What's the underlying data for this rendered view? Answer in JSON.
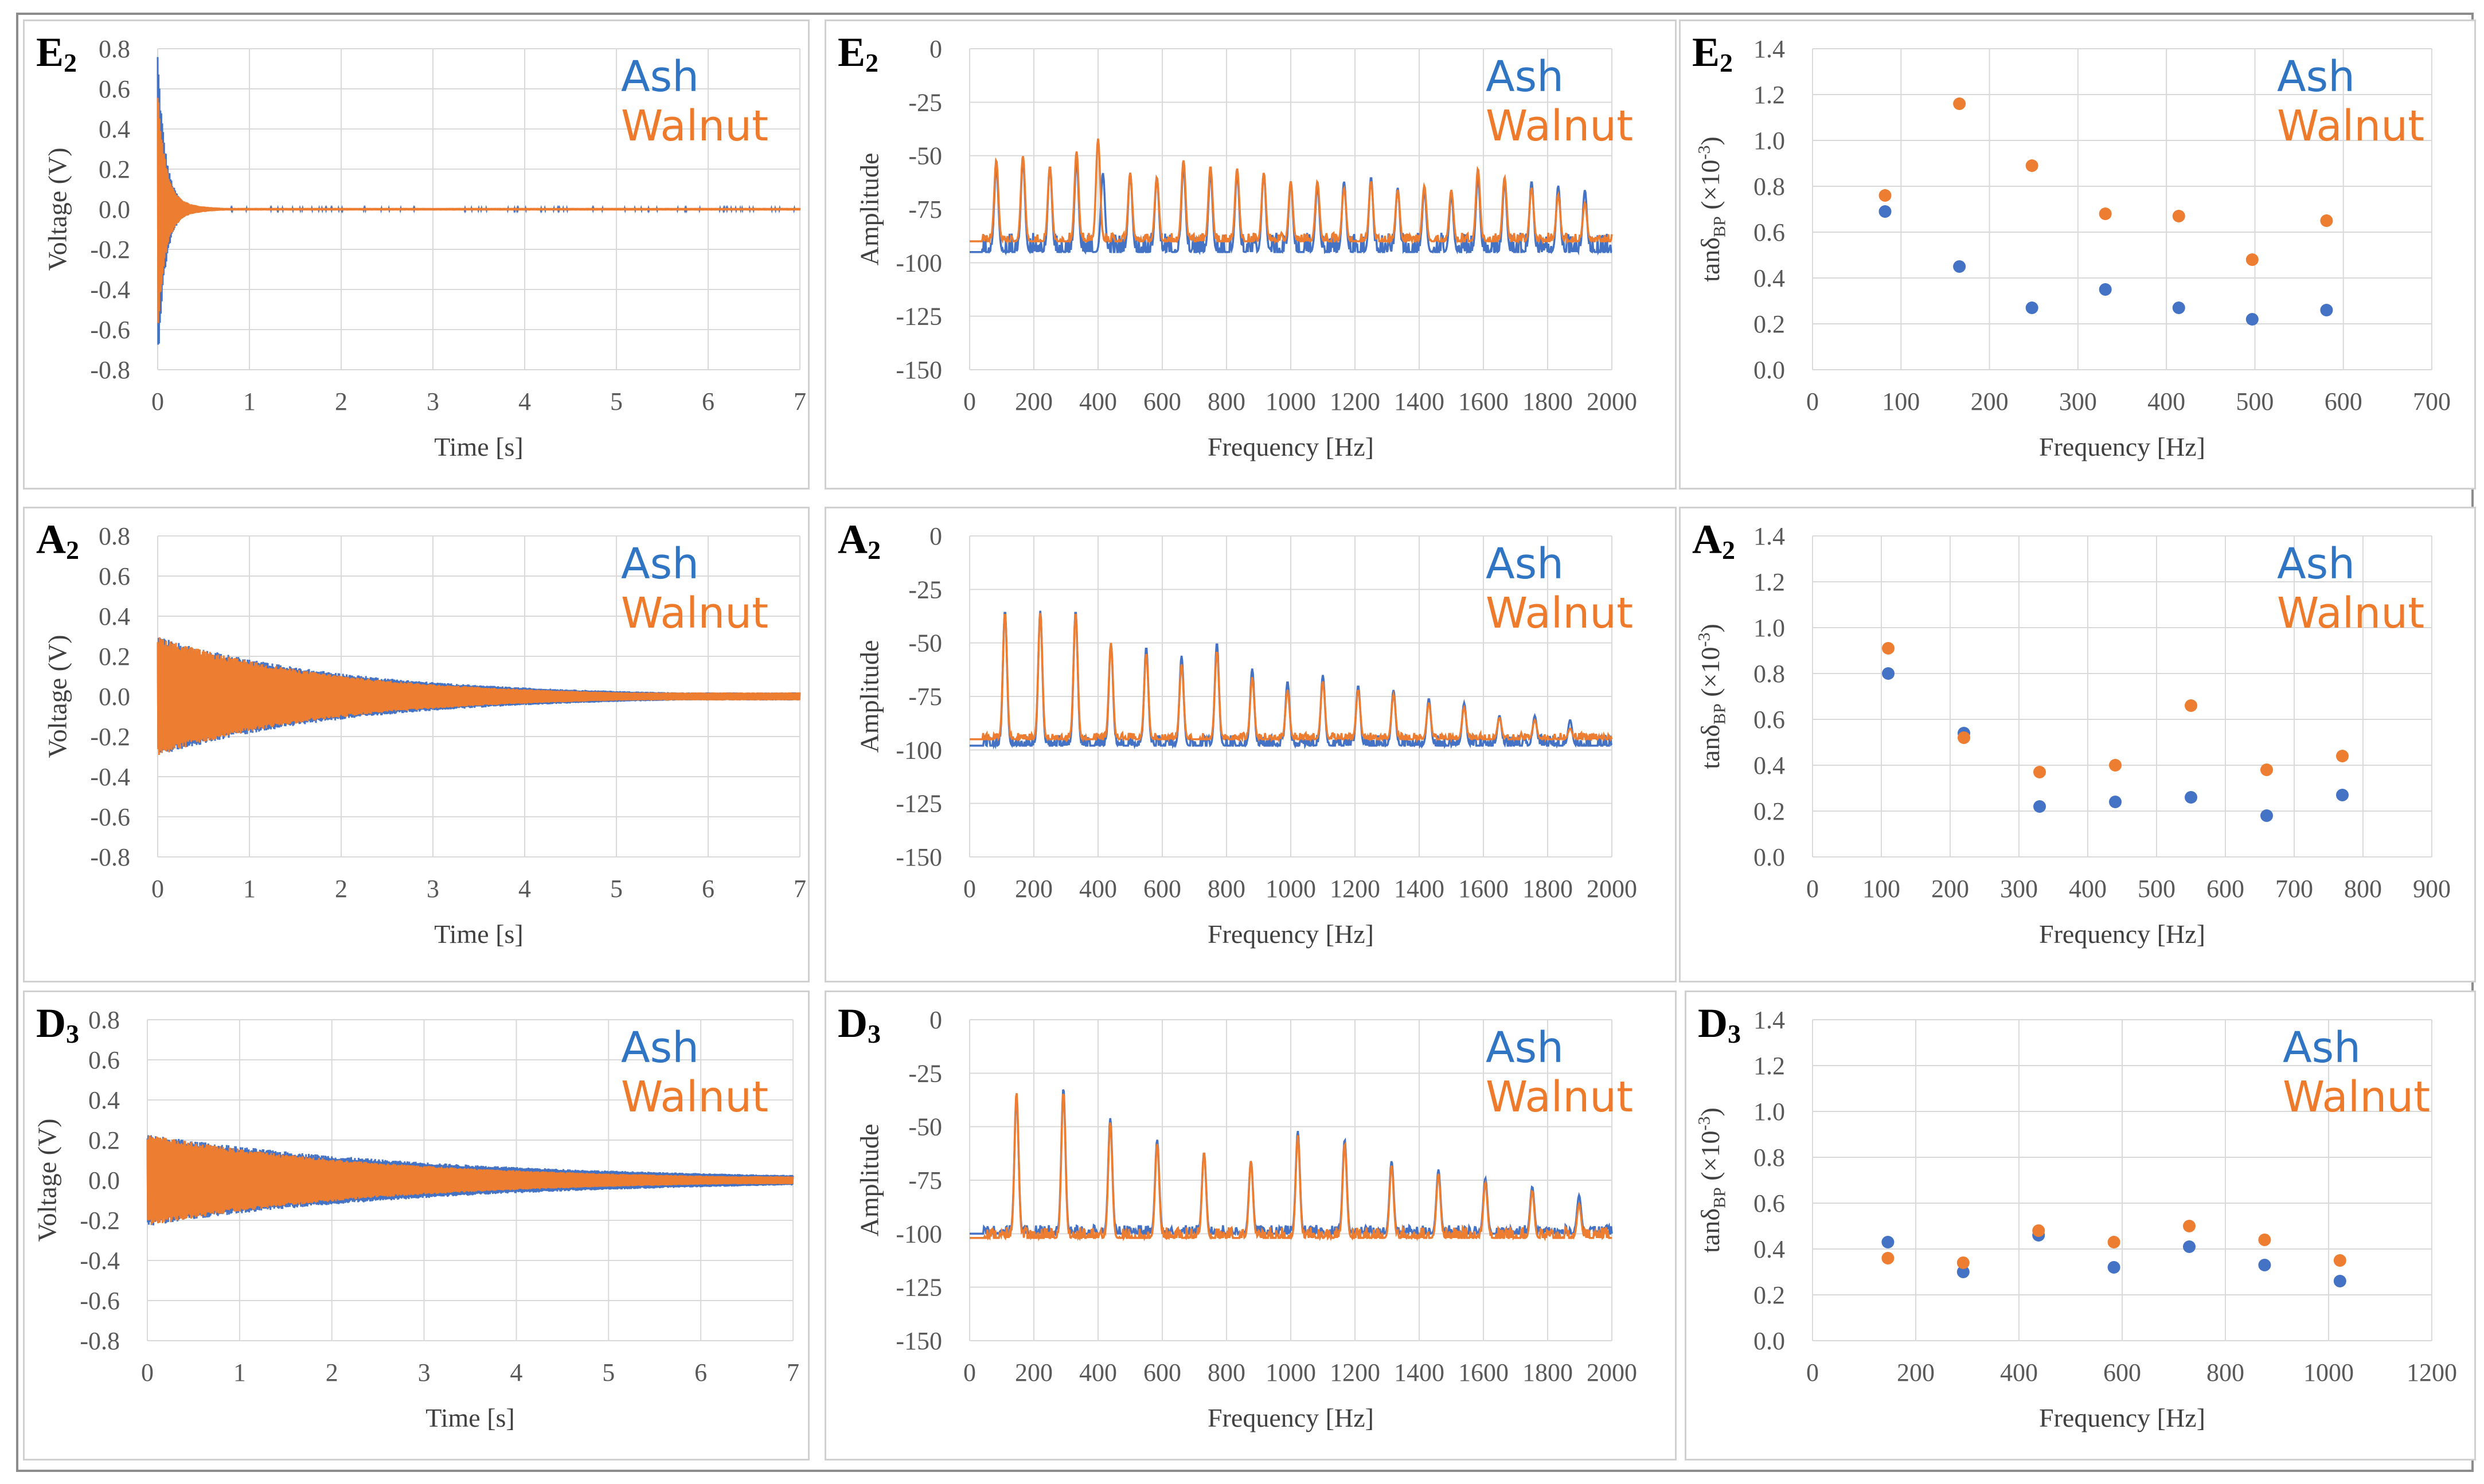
{
  "figure": {
    "legend": {
      "ash": "Ash",
      "walnut": "Walnut"
    },
    "colors": {
      "ash": "#4472c4",
      "walnut": "#ed7d31",
      "grid": "#d9d9d9",
      "axis_text": "#595959"
    }
  },
  "chart_data": [
    {
      "id": "E2-time",
      "type": "line",
      "panel_label": "E",
      "panel_sub": "2",
      "xlabel": "Time [s]",
      "ylabel": "Voltage (V)",
      "xlim": [
        0,
        7
      ],
      "ylim": [
        -0.8,
        0.8
      ],
      "xticks": [
        "0",
        "1",
        "2",
        "3",
        "4",
        "5",
        "6",
        "7"
      ],
      "yticks": [
        "0.8",
        "0.6",
        "0.4",
        "0.2",
        "0.0",
        "-0.2",
        "-0.4",
        "-0.6",
        "-0.8"
      ],
      "series": [
        {
          "name": "Ash",
          "envelope": {
            "peak": 0.8,
            "base": 0.06,
            "decay_s": 0.25,
            "floor": 0.005,
            "t_end": 7
          }
        },
        {
          "name": "Walnut",
          "envelope": {
            "peak": 0.62,
            "base": 0.07,
            "decay_s": 0.3,
            "floor": 0.006,
            "t_end": 7
          }
        }
      ]
    },
    {
      "id": "E2-spectrum",
      "type": "line",
      "panel_label": "E",
      "panel_sub": "2",
      "xlabel": "Frequency [Hz]",
      "ylabel": "Amplitude",
      "xlim": [
        0,
        2000
      ],
      "ylim": [
        -150,
        0
      ],
      "xticks": [
        "0",
        "200",
        "400",
        "600",
        "800",
        "1000",
        "1200",
        "1400",
        "1600",
        "1800",
        "2000"
      ],
      "yticks": [
        "0",
        "-25",
        "-50",
        "-75",
        "-100",
        "-125",
        "-150"
      ],
      "series": [
        {
          "name": "Ash",
          "baseline": -95,
          "noise": 9,
          "peaks": [
            [
              83,
              -55
            ],
            [
              166,
              -52
            ],
            [
              250,
              -55
            ],
            [
              333,
              -52
            ],
            [
              415,
              -58
            ],
            [
              500,
              -58
            ],
            [
              583,
              -60
            ],
            [
              666,
              -55
            ],
            [
              750,
              -58
            ],
            [
              833,
              -58
            ],
            [
              916,
              -58
            ],
            [
              1000,
              -62
            ],
            [
              1083,
              -64
            ],
            [
              1166,
              -62
            ],
            [
              1250,
              -60
            ],
            [
              1333,
              -65
            ],
            [
              1416,
              -66
            ],
            [
              1500,
              -68
            ],
            [
              1583,
              -60
            ],
            [
              1666,
              -62
            ],
            [
              1750,
              -62
            ],
            [
              1833,
              -64
            ],
            [
              1916,
              -66
            ]
          ]
        },
        {
          "name": "Walnut",
          "baseline": -90,
          "noise": 4,
          "peaks": [
            [
              83,
              -52
            ],
            [
              166,
              -50
            ],
            [
              250,
              -55
            ],
            [
              333,
              -48
            ],
            [
              400,
              -42
            ],
            [
              500,
              -58
            ],
            [
              583,
              -60
            ],
            [
              666,
              -52
            ],
            [
              750,
              -55
            ],
            [
              833,
              -56
            ],
            [
              916,
              -58
            ],
            [
              1000,
              -62
            ],
            [
              1083,
              -62
            ],
            [
              1166,
              -65
            ],
            [
              1250,
              -62
            ],
            [
              1333,
              -66
            ],
            [
              1416,
              -64
            ],
            [
              1500,
              -66
            ],
            [
              1583,
              -56
            ],
            [
              1666,
              -60
            ],
            [
              1750,
              -65
            ],
            [
              1833,
              -68
            ],
            [
              1916,
              -72
            ]
          ]
        }
      ]
    },
    {
      "id": "E2-loss",
      "type": "scatter",
      "panel_label": "E",
      "panel_sub": "2",
      "xlabel": "Frequency [Hz]",
      "ylabel_main": "tanδ",
      "ylabel_sub": "BP",
      "ylabel_unit_pre": " (×10",
      "ylabel_sup": "-3",
      "ylabel_unit_post": ")",
      "xlim": [
        0,
        700
      ],
      "ylim": [
        0,
        1.4
      ],
      "xticks": [
        "0",
        "100",
        "200",
        "300",
        "400",
        "500",
        "600",
        "700"
      ],
      "yticks": [
        "1.4",
        "1.2",
        "1.0",
        "0.8",
        "0.6",
        "0.4",
        "0.2",
        "0.0"
      ],
      "series": [
        {
          "name": "Ash",
          "x": [
            82,
            166,
            248,
            331,
            414,
            497,
            581
          ],
          "y": [
            0.69,
            0.45,
            0.27,
            0.35,
            0.27,
            0.22,
            0.26
          ]
        },
        {
          "name": "Walnut",
          "x": [
            82,
            166,
            248,
            331,
            414,
            497,
            581
          ],
          "y": [
            0.76,
            1.16,
            0.89,
            0.68,
            0.67,
            0.48,
            0.65
          ]
        }
      ]
    },
    {
      "id": "A2-time",
      "type": "line",
      "panel_label": "A",
      "panel_sub": "2",
      "xlabel": "Time [s]",
      "ylabel": "Voltage (V)",
      "xlim": [
        0,
        7
      ],
      "ylim": [
        -0.8,
        0.8
      ],
      "xticks": [
        "0",
        "1",
        "2",
        "3",
        "4",
        "5",
        "6",
        "7"
      ],
      "yticks": [
        "0.8",
        "0.6",
        "0.4",
        "0.2",
        "0.0",
        "-0.2",
        "-0.4",
        "-0.6",
        "-0.8"
      ],
      "series": [
        {
          "name": "Ash",
          "envelope": {
            "peak": 0.3,
            "base": 0.3,
            "decay_s": 2.1,
            "floor": 0.02,
            "t_end": 7
          }
        },
        {
          "name": "Walnut",
          "envelope": {
            "peak": 0.3,
            "base": 0.3,
            "decay_s": 1.9,
            "floor": 0.02,
            "t_end": 7
          }
        }
      ]
    },
    {
      "id": "A2-spectrum",
      "type": "line",
      "panel_label": "A",
      "panel_sub": "2",
      "xlabel": "Frequency [Hz]",
      "ylabel": "Amplitude",
      "xlim": [
        0,
        2000
      ],
      "ylim": [
        -150,
        0
      ],
      "xticks": [
        "0",
        "200",
        "400",
        "600",
        "800",
        "1000",
        "1200",
        "1400",
        "1600",
        "1800",
        "2000"
      ],
      "yticks": [
        "0",
        "-25",
        "-50",
        "-75",
        "-100",
        "-125",
        "-150"
      ],
      "series": [
        {
          "name": "Ash",
          "baseline": -98,
          "noise": 5,
          "peaks": [
            [
              110,
              -35
            ],
            [
              220,
              -35
            ],
            [
              330,
              -35
            ],
            [
              440,
              -50
            ],
            [
              550,
              -52
            ],
            [
              660,
              -56
            ],
            [
              770,
              -50
            ],
            [
              880,
              -62
            ],
            [
              990,
              -68
            ],
            [
              1100,
              -65
            ],
            [
              1210,
              -70
            ],
            [
              1320,
              -72
            ],
            [
              1430,
              -76
            ],
            [
              1540,
              -78
            ],
            [
              1650,
              -84
            ],
            [
              1760,
              -84
            ],
            [
              1870,
              -86
            ],
            [
              1980,
              -100
            ]
          ]
        },
        {
          "name": "Walnut",
          "baseline": -95,
          "noise": 3,
          "peaks": [
            [
              110,
              -36
            ],
            [
              220,
              -36
            ],
            [
              330,
              -36
            ],
            [
              440,
              -50
            ],
            [
              550,
              -55
            ],
            [
              660,
              -60
            ],
            [
              770,
              -54
            ],
            [
              880,
              -66
            ],
            [
              990,
              -72
            ],
            [
              1100,
              -68
            ],
            [
              1210,
              -72
            ],
            [
              1320,
              -74
            ],
            [
              1430,
              -78
            ],
            [
              1540,
              -80
            ],
            [
              1650,
              -85
            ],
            [
              1760,
              -86
            ],
            [
              1870,
              -90
            ],
            [
              1980,
              -98
            ]
          ]
        }
      ]
    },
    {
      "id": "A2-loss",
      "type": "scatter",
      "panel_label": "A",
      "panel_sub": "2",
      "xlabel": "Frequency [Hz]",
      "ylabel_main": "tanδ",
      "ylabel_sub": "BP",
      "ylabel_unit_pre": " (×10",
      "ylabel_sup": "-3",
      "ylabel_unit_post": ")",
      "xlim": [
        0,
        900
      ],
      "ylim": [
        0,
        1.4
      ],
      "xticks": [
        "0",
        "100",
        "200",
        "300",
        "400",
        "500",
        "600",
        "700",
        "800",
        "900"
      ],
      "yticks": [
        "1.4",
        "1.2",
        "1.0",
        "0.8",
        "0.6",
        "0.4",
        "0.2",
        "0.0"
      ],
      "series": [
        {
          "name": "Ash",
          "x": [
            110,
            220,
            330,
            440,
            550,
            660,
            770
          ],
          "y": [
            0.8,
            0.54,
            0.22,
            0.24,
            0.26,
            0.18,
            0.27
          ]
        },
        {
          "name": "Walnut",
          "x": [
            110,
            220,
            330,
            440,
            550,
            660,
            770
          ],
          "y": [
            0.91,
            0.52,
            0.37,
            0.4,
            0.66,
            0.38,
            0.44
          ]
        }
      ]
    },
    {
      "id": "D3-time",
      "type": "line",
      "panel_label": "D",
      "panel_sub": "3",
      "xlabel": "Time [s]",
      "ylabel": "Voltage (V)",
      "xlim": [
        0,
        7
      ],
      "ylim": [
        -0.8,
        0.8
      ],
      "xticks": [
        "0",
        "1",
        "2",
        "3",
        "4",
        "5",
        "6",
        "7"
      ],
      "yticks": [
        "0.8",
        "0.6",
        "0.4",
        "0.2",
        "0.0",
        "-0.2",
        "-0.4",
        "-0.6",
        "-0.8"
      ],
      "series": [
        {
          "name": "Ash",
          "envelope": {
            "peak": 0.23,
            "base": 0.23,
            "decay_s": 3.2,
            "floor": 0.02,
            "t_end": 7
          }
        },
        {
          "name": "Walnut",
          "envelope": {
            "peak": 0.23,
            "base": 0.23,
            "decay_s": 2.6,
            "floor": 0.02,
            "t_end": 7
          }
        }
      ]
    },
    {
      "id": "D3-spectrum",
      "type": "line",
      "panel_label": "D",
      "panel_sub": "3",
      "xlabel": "Frequency [Hz]",
      "ylabel": "Amplitude",
      "xlim": [
        0,
        2000
      ],
      "ylim": [
        -150,
        0
      ],
      "xticks": [
        "0",
        "200",
        "400",
        "600",
        "800",
        "1000",
        "1200",
        "1400",
        "1600",
        "1800",
        "2000"
      ],
      "yticks": [
        "0",
        "-25",
        "-50",
        "-75",
        "-100",
        "-125",
        "-150"
      ],
      "series": [
        {
          "name": "Ash",
          "baseline": -100,
          "noise": 4,
          "peaks": [
            [
              146,
              -36
            ],
            [
              292,
              -32
            ],
            [
              438,
              -46
            ],
            [
              584,
              -56
            ],
            [
              730,
              -62
            ],
            [
              876,
              -66
            ],
            [
              1022,
              -52
            ],
            [
              1168,
              -56
            ],
            [
              1314,
              -66
            ],
            [
              1460,
              -70
            ],
            [
              1606,
              -74
            ],
            [
              1752,
              -78
            ],
            [
              1898,
              -82
            ]
          ]
        },
        {
          "name": "Walnut",
          "baseline": -102,
          "noise": 5,
          "peaks": [
            [
              146,
              -34
            ],
            [
              292,
              -34
            ],
            [
              438,
              -48
            ],
            [
              584,
              -58
            ],
            [
              730,
              -62
            ],
            [
              876,
              -66
            ],
            [
              1022,
              -54
            ],
            [
              1168,
              -58
            ],
            [
              1314,
              -68
            ],
            [
              1460,
              -72
            ],
            [
              1606,
              -76
            ],
            [
              1752,
              -80
            ],
            [
              1898,
              -86
            ]
          ]
        }
      ]
    },
    {
      "id": "D3-loss",
      "type": "scatter",
      "panel_label": "D",
      "panel_sub": "3",
      "xlabel": "Frequency [Hz]",
      "ylabel_main": "tanδ",
      "ylabel_sub": "BP",
      "ylabel_unit_pre": " (×10",
      "ylabel_sup": "-3",
      "ylabel_unit_post": ")",
      "xlim": [
        0,
        1200
      ],
      "ylim": [
        0,
        1.4
      ],
      "xticks": [
        "0",
        "200",
        "400",
        "600",
        "800",
        "1000",
        "1200"
      ],
      "yticks": [
        "1.4",
        "1.2",
        "1.0",
        "0.8",
        "0.6",
        "0.4",
        "0.2",
        "0.0"
      ],
      "series": [
        {
          "name": "Ash",
          "x": [
            146,
            292,
            438,
            584,
            730,
            876,
            1022
          ],
          "y": [
            0.43,
            0.3,
            0.46,
            0.32,
            0.41,
            0.33,
            0.26
          ]
        },
        {
          "name": "Walnut",
          "x": [
            146,
            292,
            438,
            584,
            730,
            876,
            1022
          ],
          "y": [
            0.36,
            0.34,
            0.48,
            0.43,
            0.5,
            0.44,
            0.35
          ]
        }
      ]
    }
  ]
}
